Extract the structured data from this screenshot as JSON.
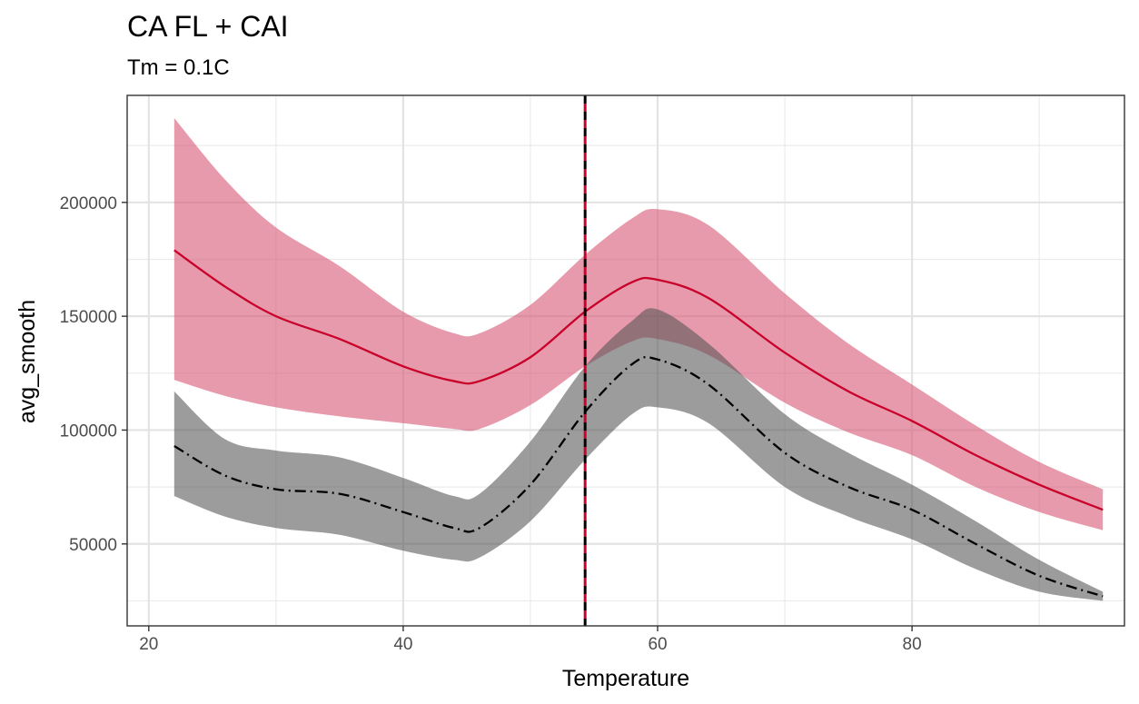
{
  "chart_data": {
    "type": "line",
    "title": "CA FL + CAI",
    "subtitle": "Tm = 0.1C",
    "xlabel": "Temperature",
    "ylabel": "avg_smooth",
    "xlim": [
      18.3,
      96.7
    ],
    "ylim": [
      14000,
      247000
    ],
    "x_ticks": [
      20,
      40,
      60,
      80
    ],
    "y_ticks": [
      50000,
      100000,
      150000,
      200000
    ],
    "x_tick_labels": [
      "20",
      "40",
      "60",
      "80"
    ],
    "y_tick_labels": [
      "50000",
      "100000",
      "150000",
      "200000"
    ],
    "grid": true,
    "vline": {
      "x": 54.3,
      "color": "#c8002a",
      "style": "dashed-over-black"
    },
    "series": [
      {
        "color": "#c8002a",
        "band_color": "#d95c78",
        "line_style": "solid",
        "x": [
          22,
          26,
          30,
          35,
          40,
          44,
          46,
          50,
          54.3,
          58,
          60,
          64,
          70,
          75,
          80,
          85,
          90,
          95
        ],
        "y": [
          179000,
          163000,
          150000,
          140000,
          128000,
          121500,
          121500,
          132000,
          152000,
          165000,
          166000,
          158000,
          134000,
          117000,
          104000,
          89000,
          76000,
          65000
        ],
        "lower": [
          122000,
          115000,
          110000,
          106000,
          103000,
          100500,
          100500,
          111000,
          128000,
          139000,
          140000,
          133000,
          112000,
          99000,
          89000,
          75000,
          64000,
          56000
        ],
        "upper": [
          237000,
          210000,
          189000,
          172000,
          152000,
          142500,
          142500,
          155000,
          177000,
          193000,
          197000,
          190000,
          160000,
          138000,
          120000,
          102000,
          86000,
          74000
        ]
      },
      {
        "color": "#000000",
        "band_color": "#555555",
        "line_style": "dashdot",
        "x": [
          22,
          26,
          30,
          35,
          40,
          44,
          46,
          50,
          54.3,
          58,
          60,
          64,
          70,
          75,
          80,
          85,
          90,
          95
        ],
        "y": [
          93000,
          80000,
          74000,
          72000,
          64000,
          57000,
          57000,
          76000,
          108000,
          129000,
          131000,
          120000,
          90000,
          75000,
          65000,
          50000,
          36000,
          27000
        ],
        "lower": [
          71000,
          62000,
          57000,
          54000,
          47000,
          43000,
          44000,
          60000,
          87000,
          107000,
          110000,
          103000,
          75000,
          62000,
          52000,
          39000,
          29000,
          25000
        ],
        "upper": [
          117000,
          96000,
          91000,
          88000,
          79000,
          71000,
          72000,
          95000,
          128000,
          148000,
          153000,
          138000,
          107000,
          90000,
          76000,
          60000,
          43000,
          29000
        ]
      }
    ]
  }
}
